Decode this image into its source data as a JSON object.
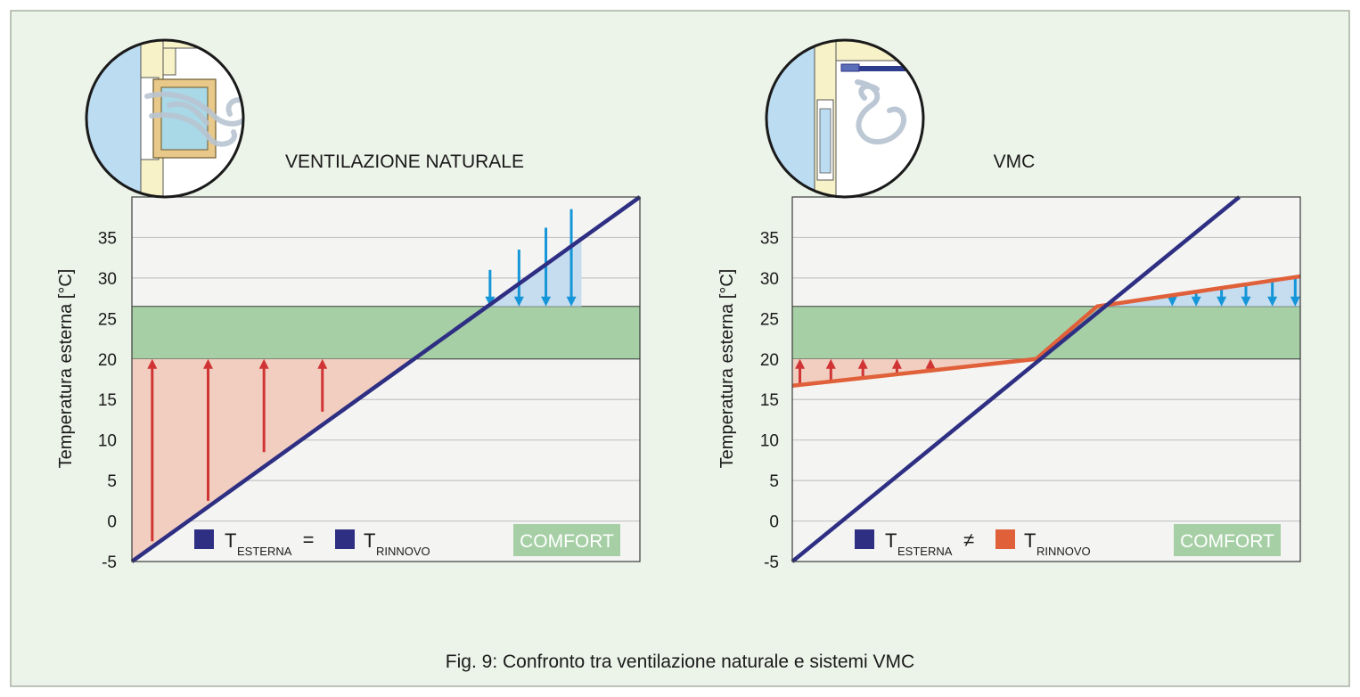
{
  "caption": "Fig. 9: Confronto tra ventilazione naturale e sistemi VMC",
  "colors": {
    "background": "#ecf3e8",
    "plot_bg": "#f4f5f3",
    "comfort_band": "#a6cfa6",
    "heating_fill": "#f1cec0",
    "cooling_fill": "#c6dcef",
    "t_esterna_line": "#2e2f83",
    "t_rinnovo_vmc": "#e0603a",
    "red_arrow": "#d03434",
    "blue_arrow": "#1596d8",
    "grid": "#c4c4c4"
  },
  "icons": [
    "wind-swirl-icon",
    "window-icon",
    "duct-icon"
  ],
  "chart_data": [
    {
      "type": "line",
      "title": "VENTILAZIONE NATURALE",
      "ylabel": "Temperatura esterna [°C]",
      "ylim": [
        -5,
        40
      ],
      "yticks": [
        "-5",
        "0",
        "5",
        "10",
        "15",
        "20",
        "25",
        "30",
        "35"
      ],
      "grid": true,
      "comfort_range": [
        20,
        26.5
      ],
      "series": [
        {
          "legend_symbol": "T",
          "legend_sub": "ESTERNA",
          "x": [
            0,
            1
          ],
          "y": [
            -5,
            40
          ]
        },
        {
          "legend_symbol": "T",
          "legend_sub": "RINNOVO",
          "x": [
            0,
            1
          ],
          "y": [
            -5,
            40
          ]
        }
      ],
      "legend_operator": "=",
      "legend_placement": "bottom",
      "comfort_label": "COMFORT",
      "heating_arrows": [
        {
          "x": 0.04,
          "from": -2.5,
          "to": 20
        },
        {
          "x": 0.15,
          "from": 2.5,
          "to": 20
        },
        {
          "x": 0.26,
          "from": 8.5,
          "to": 20
        },
        {
          "x": 0.375,
          "from": 13.5,
          "to": 20
        }
      ],
      "cooling_arrows": [
        {
          "x": 0.705,
          "from": 31,
          "to": 26.5
        },
        {
          "x": 0.762,
          "from": 33.5,
          "to": 26.5
        },
        {
          "x": 0.815,
          "from": 36.2,
          "to": 26.5
        },
        {
          "x": 0.865,
          "from": 38.5,
          "to": 26.5
        }
      ]
    },
    {
      "type": "line",
      "title": "VMC",
      "ylabel": "Temperatura esterna [°C]",
      "ylim": [
        -5,
        40
      ],
      "yticks": [
        "-5",
        "0",
        "5",
        "10",
        "15",
        "20",
        "25",
        "30",
        "35"
      ],
      "grid": true,
      "comfort_range": [
        20,
        26.5
      ],
      "series": [
        {
          "legend_symbol": "T",
          "legend_sub": "ESTERNA",
          "x": [
            0,
            0.88
          ],
          "y": [
            -5,
            40
          ]
        },
        {
          "legend_symbol": "T",
          "legend_sub": "RINNOVO",
          "x": [
            0,
            0.48,
            0.6,
            1
          ],
          "y": [
            16.7,
            20,
            26.5,
            30.2
          ]
        }
      ],
      "legend_operator": "≠",
      "legend_placement": "bottom",
      "comfort_label": "COMFORT",
      "heating_arrows": [
        {
          "x": 0.015,
          "from": 16.8,
          "to": 20
        },
        {
          "x": 0.076,
          "from": 17.3,
          "to": 20
        },
        {
          "x": 0.139,
          "from": 17.7,
          "to": 20
        },
        {
          "x": 0.206,
          "from": 18.2,
          "to": 20
        },
        {
          "x": 0.272,
          "from": 18.7,
          "to": 20
        }
      ],
      "cooling_arrows": [
        {
          "x": 0.748,
          "from": 27.9,
          "to": 26.5
        },
        {
          "x": 0.795,
          "from": 28.4,
          "to": 26.5
        },
        {
          "x": 0.845,
          "from": 28.8,
          "to": 26.5
        },
        {
          "x": 0.893,
          "from": 29.2,
          "to": 26.5
        },
        {
          "x": 0.945,
          "from": 29.7,
          "to": 26.5
        },
        {
          "x": 0.99,
          "from": 30.1,
          "to": 26.5
        }
      ]
    }
  ]
}
